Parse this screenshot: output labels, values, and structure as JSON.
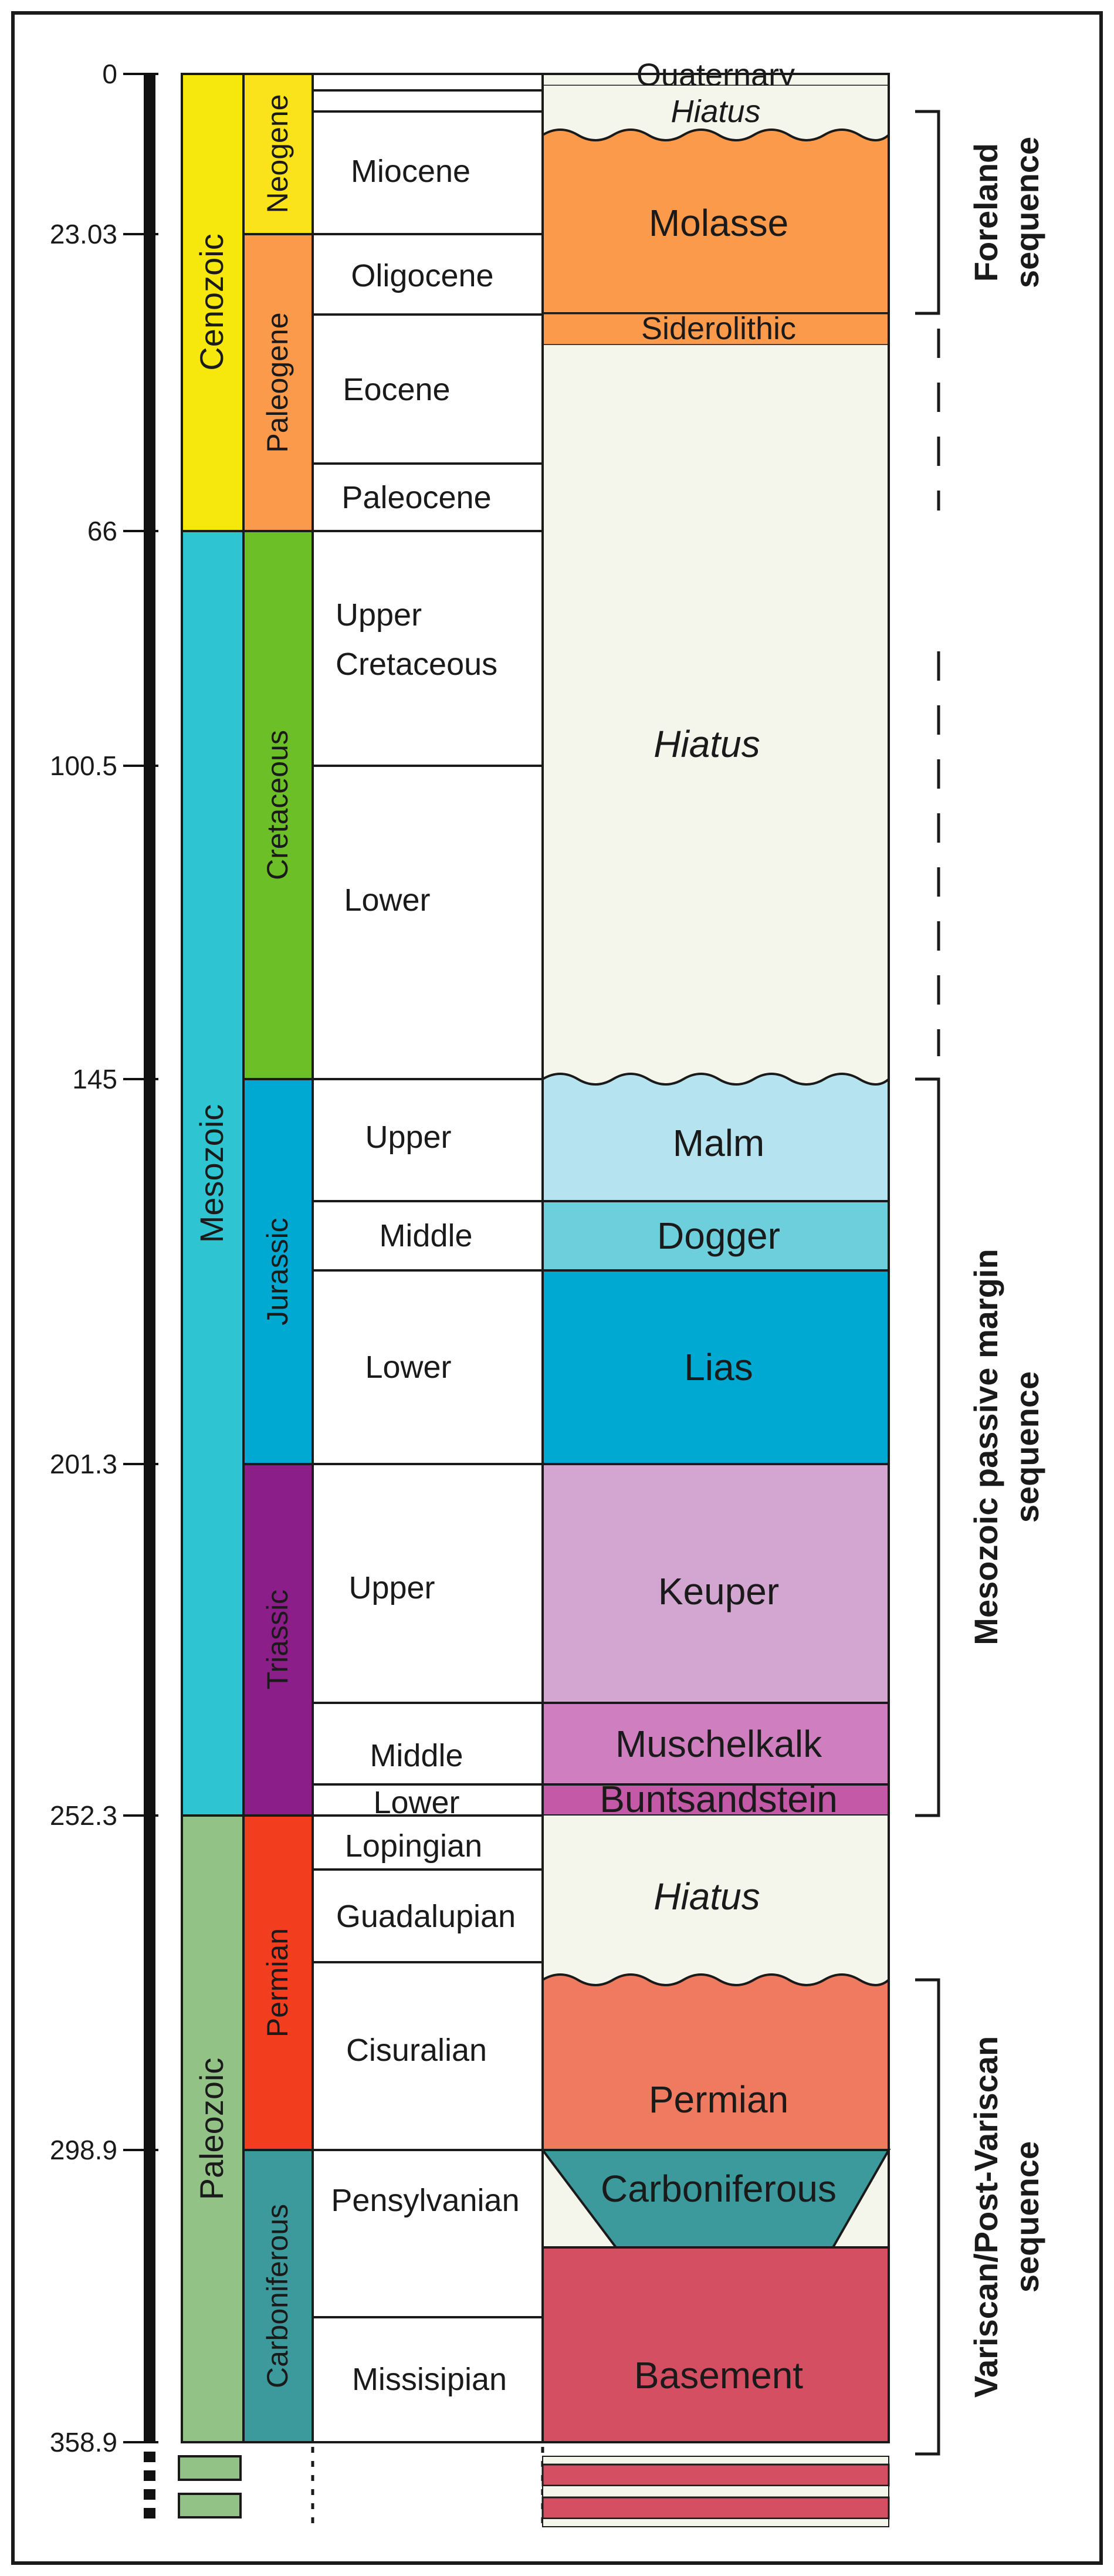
{
  "ages": [
    "0",
    "23.03",
    "66",
    "100.5",
    "145",
    "201.3",
    "252.3",
    "298.9",
    "358.9"
  ],
  "eras": [
    {
      "name": "Cenozoic",
      "color": "#f6e80c"
    },
    {
      "name": "Mesozoic",
      "color": "#2ec4d2"
    },
    {
      "name": "Paleozoic",
      "color": "#93c286"
    }
  ],
  "periods": [
    {
      "name": "Neogene",
      "color": "#fbe31c"
    },
    {
      "name": "Paleogene",
      "color": "#fa9a4a"
    },
    {
      "name": "Cretaceous",
      "color": "#6cbf27"
    },
    {
      "name": "Jurassic",
      "color": "#00a9d1"
    },
    {
      "name": "Triassic",
      "color": "#8c1e8a"
    },
    {
      "name": "Permian",
      "color": "#f23d1f"
    },
    {
      "name": "Carboniferous",
      "color": "#3d9a9c"
    }
  ],
  "epochs": [
    {
      "lines": [
        "Miocene"
      ]
    },
    {
      "lines": [
        "Oligocene"
      ]
    },
    {
      "lines": [
        "Eocene"
      ]
    },
    {
      "lines": [
        "Paleocene"
      ]
    },
    {
      "lines": [
        "Upper",
        "Cretaceous"
      ]
    },
    {
      "lines": [
        "Lower"
      ]
    },
    {
      "lines": [
        "Upper"
      ]
    },
    {
      "lines": [
        "Middle"
      ]
    },
    {
      "lines": [
        "Lower"
      ]
    },
    {
      "lines": [
        "Upper"
      ]
    },
    {
      "lines": [
        "Middle"
      ]
    },
    {
      "lines": [
        "Lower"
      ]
    },
    {
      "lines": [
        "Lopingian"
      ]
    },
    {
      "lines": [
        "Guadalupian"
      ]
    },
    {
      "lines": [
        "Cisuralian"
      ]
    },
    {
      "lines": [
        "Pensylvanian"
      ]
    },
    {
      "lines": [
        "Missisipian"
      ]
    }
  ],
  "units": [
    {
      "name": "Quaternary",
      "color": "#f4f6ec",
      "italic": false
    },
    {
      "name": "Hiatus",
      "color": "#f4f6ec",
      "italic": true
    },
    {
      "name": "Molasse",
      "color": "#fa9a4a",
      "italic": false
    },
    {
      "name": "Siderolithic",
      "color": "#fa9a4a",
      "italic": false
    },
    {
      "name": "Hiatus",
      "color": "#f4f6ec",
      "italic": true
    },
    {
      "name": "Malm",
      "color": "#b5e3f0",
      "italic": false
    },
    {
      "name": "Dogger",
      "color": "#6dcfdc",
      "italic": false
    },
    {
      "name": "Lias",
      "color": "#00a9d1",
      "italic": false
    },
    {
      "name": "Keuper",
      "color": "#d3a6d1",
      "italic": false
    },
    {
      "name": "Muschelkalk",
      "color": "#cf7fbf",
      "italic": false
    },
    {
      "name": "Buntsandstein",
      "color": "#c45aa7",
      "italic": false
    },
    {
      "name": "Hiatus",
      "color": "#f4f6ec",
      "italic": true
    },
    {
      "name": "Permian",
      "color": "#f07a5f",
      "italic": false
    },
    {
      "name": "Carboniferous",
      "color": "#3d9a9c",
      "italic": false
    },
    {
      "name": "Basement",
      "color": "#d44f62",
      "italic": false
    }
  ],
  "sequences": [
    {
      "lines": [
        "Foreland",
        "sequence"
      ]
    },
    {
      "lines": [
        "Mesozoic passive margin",
        "sequence"
      ]
    },
    {
      "lines": [
        "Variscan/Post-Variscan",
        "sequence"
      ]
    }
  ]
}
